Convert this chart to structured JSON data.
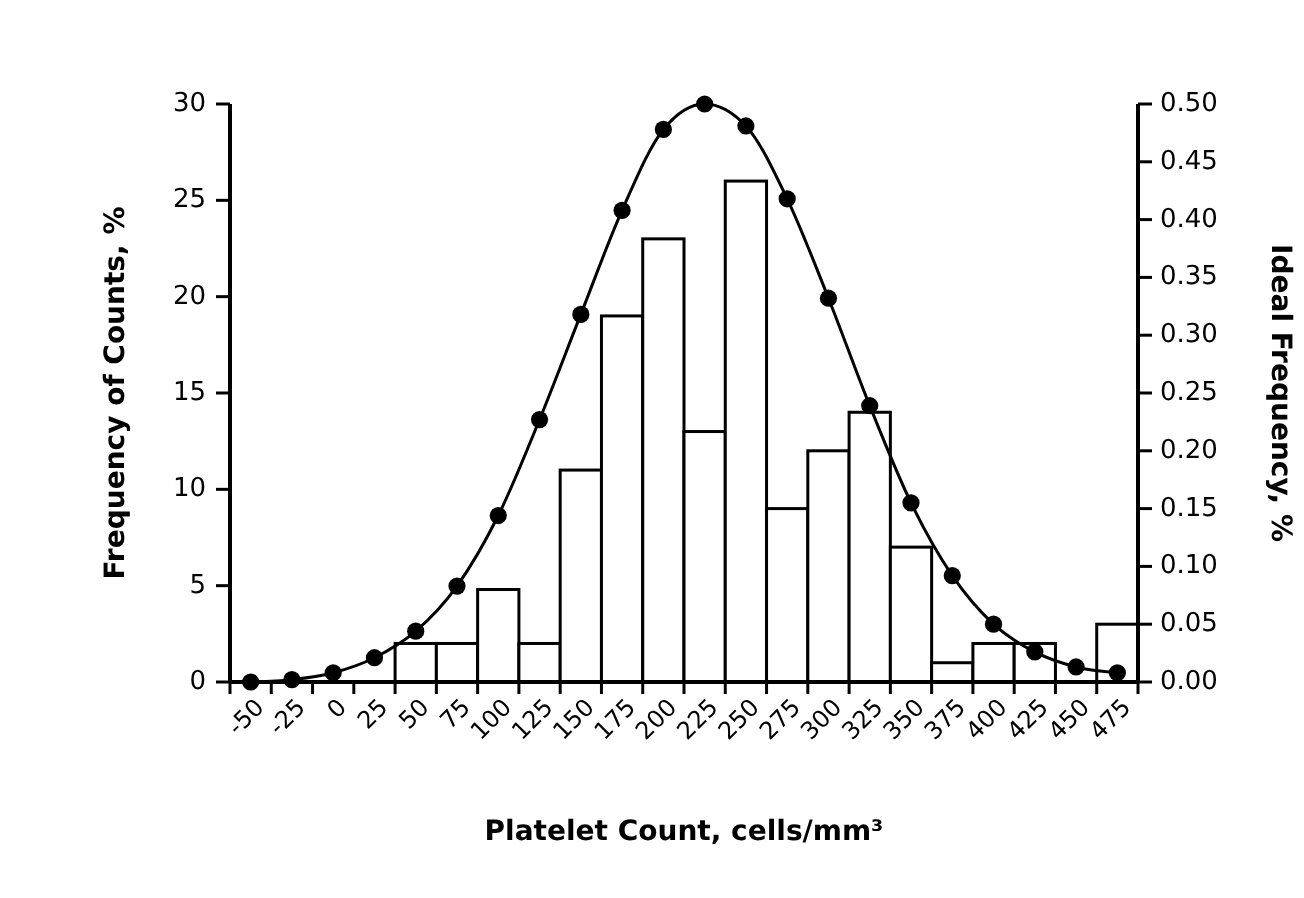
{
  "chart_data": {
    "type": "bar",
    "xlabel": "Platelet Count, cells/mm³",
    "ylabel": "Frequency of Counts, %",
    "y2label": "Ideal Frequency, %",
    "categories": [
      "-50",
      "-25",
      "0",
      "25",
      "50",
      "75",
      "100",
      "125",
      "150",
      "175",
      "200",
      "225",
      "250",
      "275",
      "300",
      "325",
      "350",
      "375",
      "400",
      "425",
      "450",
      "475"
    ],
    "series": [
      {
        "color": "#ffffff",
        "values": [
          0,
          0,
          0,
          0,
          2,
          2,
          4.8,
          2,
          11,
          19,
          23,
          13,
          26,
          9,
          12,
          14,
          7,
          1,
          2,
          2,
          0,
          3
        ]
      },
      {
        "type": "line",
        "axis": "y2",
        "color": "#000000",
        "marker": "circle",
        "values": [
          0,
          0.002,
          0.008,
          0.021,
          0.044,
          0.083,
          0.144,
          0.227,
          0.318,
          0.408,
          0.478,
          0.5,
          0.481,
          0.418,
          0.332,
          0.239,
          0.155,
          0.092,
          0.05,
          0.026,
          0.013,
          0.008
        ]
      }
    ],
    "ylim": [
      0,
      30
    ],
    "yticks": [
      0,
      5,
      10,
      15,
      20,
      25,
      30
    ],
    "y2lim": [
      0,
      0.5
    ],
    "y2ticks": [
      {
        "value": 0,
        "label": "0.00"
      },
      {
        "value": 0.05,
        "label": "0.05"
      },
      {
        "value": 0.1,
        "label": "0.10"
      },
      {
        "value": 0.15,
        "label": "0.15"
      },
      {
        "value": 0.2,
        "label": "0.20"
      },
      {
        "value": 0.25,
        "label": "0.25"
      },
      {
        "value": 0.3,
        "label": "0.30"
      },
      {
        "value": 0.35,
        "label": "0.35"
      },
      {
        "value": 0.4,
        "label": "0.40"
      },
      {
        "value": 0.45,
        "label": "0.45"
      },
      {
        "value": 0.5,
        "label": "0.50"
      }
    ],
    "grid": false
  }
}
